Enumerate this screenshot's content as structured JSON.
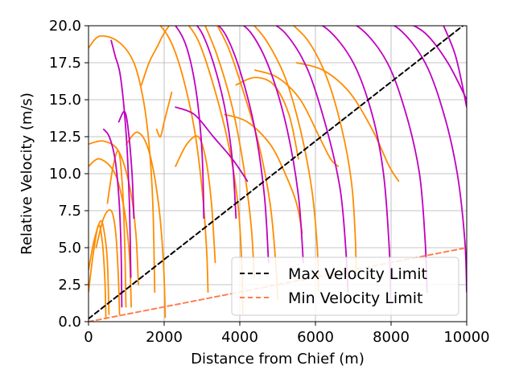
{
  "chart_data": {
    "type": "line",
    "title": "",
    "xlabel": "Distance from Chief (m)",
    "ylabel": "Relative Velocity (m/s)",
    "xlim": [
      0,
      10000
    ],
    "ylim": [
      0,
      20
    ],
    "x_ticks": [
      "0",
      "2000",
      "4000",
      "6000",
      "8000",
      "10000"
    ],
    "y_ticks": [
      "0.0",
      "2.5",
      "5.0",
      "7.5",
      "10.0",
      "12.5",
      "15.0",
      "17.5",
      "20.0"
    ],
    "grid": true,
    "legend_position": "lower-right",
    "colors": {
      "orange": "#ff8c00",
      "magenta": "#c000c0",
      "max_limit": "#000000",
      "min_limit": "#ff7f50"
    },
    "series": [
      {
        "name": "Max Velocity Limit",
        "style": "dashed",
        "color": "#000000",
        "x": [
          0,
          10000
        ],
        "y": [
          0.2,
          20.2
        ]
      },
      {
        "name": "Min Velocity Limit",
        "style": "dashed",
        "color": "#ff7f50",
        "x": [
          0,
          10000
        ],
        "y": [
          0,
          5.0
        ]
      },
      {
        "color": "#ff8c00",
        "x": [
          0,
          300,
          800,
          1200,
          1450,
          1600,
          1700,
          1750
        ],
        "y": [
          18.5,
          19.3,
          18.9,
          17.5,
          15,
          12,
          8,
          2
        ]
      },
      {
        "color": "#ff8c00",
        "x": [
          0,
          400,
          800,
          1100,
          1250,
          1320
        ],
        "y": [
          12,
          12.2,
          11.5,
          9,
          6,
          2.5
        ]
      },
      {
        "color": "#ff8c00",
        "x": [
          0,
          300,
          700,
          950,
          1080,
          1130
        ],
        "y": [
          10.5,
          11,
          10,
          7.5,
          4.5,
          1
        ]
      },
      {
        "color": "#ff8c00",
        "x": [
          0,
          150,
          320,
          420,
          500,
          540
        ],
        "y": [
          3.5,
          5.5,
          6.8,
          6,
          4,
          0.5
        ]
      },
      {
        "color": "#ff8c00",
        "x": [
          0,
          120,
          260,
          360,
          430,
          460
        ],
        "y": [
          2,
          4.5,
          6.5,
          5.5,
          3,
          0.2
        ]
      },
      {
        "color": "#ff8c00",
        "x": [
          500,
          650,
          800,
          900,
          960,
          990
        ],
        "y": [
          8,
          10.5,
          11.5,
          9,
          5,
          1
        ]
      },
      {
        "color": "#ff8c00",
        "x": [
          200,
          400,
          600,
          720,
          790,
          820
        ],
        "y": [
          5,
          7,
          7.5,
          6,
          3,
          0.5
        ]
      },
      {
        "color": "#ff8c00",
        "x": [
          1000,
          1300,
          1600,
          1850,
          1980,
          2030
        ],
        "y": [
          12,
          12.8,
          11.5,
          8,
          4,
          0.3
        ]
      },
      {
        "color": "#ff8c00",
        "x": [
          1800,
          1900,
          2000,
          2100,
          2200
        ],
        "y": [
          13,
          12.5,
          13.5,
          14.5,
          15.5
        ]
      },
      {
        "color": "#ff8c00",
        "x": [
          1400,
          1600,
          1800,
          2000,
          2200,
          2400
        ],
        "y": [
          16,
          17.5,
          18.5,
          19.5,
          20.2,
          20.5
        ]
      },
      {
        "color": "#ff8c00",
        "x": [
          1600,
          1900,
          2200,
          2500,
          2800,
          3000,
          3120,
          3160
        ],
        "y": [
          20.5,
          20,
          18.8,
          16.5,
          13,
          9,
          5,
          2
        ]
      },
      {
        "color": "#ff8c00",
        "x": [
          2300,
          2600,
          2900,
          3100,
          3250,
          3350
        ],
        "y": [
          10.5,
          12,
          12.5,
          11,
          8,
          4
        ]
      },
      {
        "color": "#ff8c00",
        "x": [
          2500,
          2900,
          3300,
          3700,
          3950,
          4050,
          4080
        ],
        "y": [
          20.5,
          19,
          16,
          12,
          8,
          4,
          0.5
        ]
      },
      {
        "color": "#ff8c00",
        "x": [
          3000,
          3400,
          3800,
          4100,
          4300,
          4380
        ],
        "y": [
          20.5,
          18,
          14.5,
          10.5,
          6.5,
          3
        ]
      },
      {
        "color": "#ff8c00",
        "x": [
          3300,
          3700,
          4100,
          4500,
          4800,
          4950,
          5000
        ],
        "y": [
          20.5,
          18.5,
          15.5,
          12,
          8,
          4,
          1.5
        ]
      },
      {
        "color": "#ff8c00",
        "x": [
          4200,
          4700,
          5200,
          5600,
          5900,
          6050,
          6080
        ],
        "y": [
          20.5,
          19,
          16.5,
          13,
          9,
          5,
          2
        ]
      },
      {
        "color": "#ff8c00",
        "x": [
          5200,
          5800,
          6300,
          6700,
          6950,
          7050,
          7080
        ],
        "y": [
          20.5,
          19,
          16.5,
          13,
          9.5,
          6,
          3
        ]
      },
      {
        "color": "#ff8c00",
        "x": [
          4400,
          5000,
          5600,
          6100,
          6400,
          6600
        ],
        "y": [
          17,
          16.5,
          15,
          12.5,
          11,
          10.5
        ]
      },
      {
        "color": "#ff8c00",
        "x": [
          5500,
          6200,
          6900,
          7500,
          7950,
          8200
        ],
        "y": [
          17.5,
          17,
          15.5,
          13,
          10.5,
          9.5
        ]
      },
      {
        "color": "#ff8c00",
        "x": [
          3600,
          4200,
          4800,
          5200,
          5500,
          5650
        ],
        "y": [
          14,
          13.5,
          12,
          10,
          8,
          6
        ]
      },
      {
        "color": "#ff8c00",
        "x": [
          3900,
          4400,
          4900,
          5300,
          5550
        ],
        "y": [
          16,
          16.5,
          16,
          14,
          11
        ]
      },
      {
        "color": "#c000c0",
        "x": [
          600,
          700,
          850,
          1000,
          1080,
          1120
        ],
        "y": [
          19,
          18,
          16.5,
          12.5,
          8,
          3
        ]
      },
      {
        "color": "#c000c0",
        "x": [
          400,
          550,
          700,
          800,
          860,
          880
        ],
        "y": [
          13,
          12.5,
          11,
          8.5,
          5,
          1
        ]
      },
      {
        "color": "#c000c0",
        "x": [
          800,
          950,
          1050,
          1150,
          1200
        ],
        "y": [
          13.5,
          14.2,
          13,
          10,
          7
        ]
      },
      {
        "color": "#c000c0",
        "x": [
          2000,
          2300,
          2600,
          2850,
          3000,
          3050
        ],
        "y": [
          20.5,
          20,
          18.5,
          15.5,
          11.5,
          7
        ]
      },
      {
        "color": "#c000c0",
        "x": [
          2700,
          3000,
          3300,
          3600,
          3800,
          3900
        ],
        "y": [
          20.5,
          19.5,
          17.5,
          14.5,
          11,
          7
        ]
      },
      {
        "color": "#c000c0",
        "x": [
          3200,
          3600,
          4000,
          4400,
          4650,
          4760
        ],
        "y": [
          20.5,
          19.5,
          17,
          13,
          8.5,
          4
        ]
      },
      {
        "color": "#c000c0",
        "x": [
          3800,
          4300,
          4800,
          5250,
          5550,
          5680
        ],
        "y": [
          20.5,
          19.5,
          17,
          13,
          8.5,
          4
        ]
      },
      {
        "color": "#c000c0",
        "x": [
          4600,
          5200,
          5800,
          6300,
          6650,
          6800,
          6860
        ],
        "y": [
          20.5,
          19.5,
          17,
          13,
          9,
          5,
          2
        ]
      },
      {
        "color": "#c000c0",
        "x": [
          5600,
          6300,
          7000,
          7500,
          7800,
          7950,
          7990
        ],
        "y": [
          20.5,
          19.8,
          17.5,
          14,
          10,
          5,
          1.5
        ]
      },
      {
        "color": "#c000c0",
        "x": [
          6500,
          7200,
          7900,
          8400,
          8750,
          8900,
          8950
        ],
        "y": [
          20.5,
          19.8,
          17.5,
          14,
          10,
          5.5,
          2
        ]
      },
      {
        "color": "#c000c0",
        "x": [
          7500,
          8200,
          8900,
          9400,
          9750,
          9950,
          10000
        ],
        "y": [
          20.5,
          19.8,
          17.5,
          14,
          10,
          5.5,
          2
        ]
      },
      {
        "color": "#c000c0",
        "x": [
          8200,
          8900,
          9500,
          10000
        ],
        "y": [
          20.5,
          19.5,
          17.5,
          15
        ]
      },
      {
        "color": "#c000c0",
        "x": [
          9300,
          9700,
          10000
        ],
        "y": [
          20.5,
          18,
          14.5
        ]
      },
      {
        "color": "#c000c0",
        "x": [
          2300,
          2800,
          3300,
          3800,
          4200
        ],
        "y": [
          14.5,
          14,
          12.5,
          11,
          9.5
        ]
      }
    ]
  }
}
